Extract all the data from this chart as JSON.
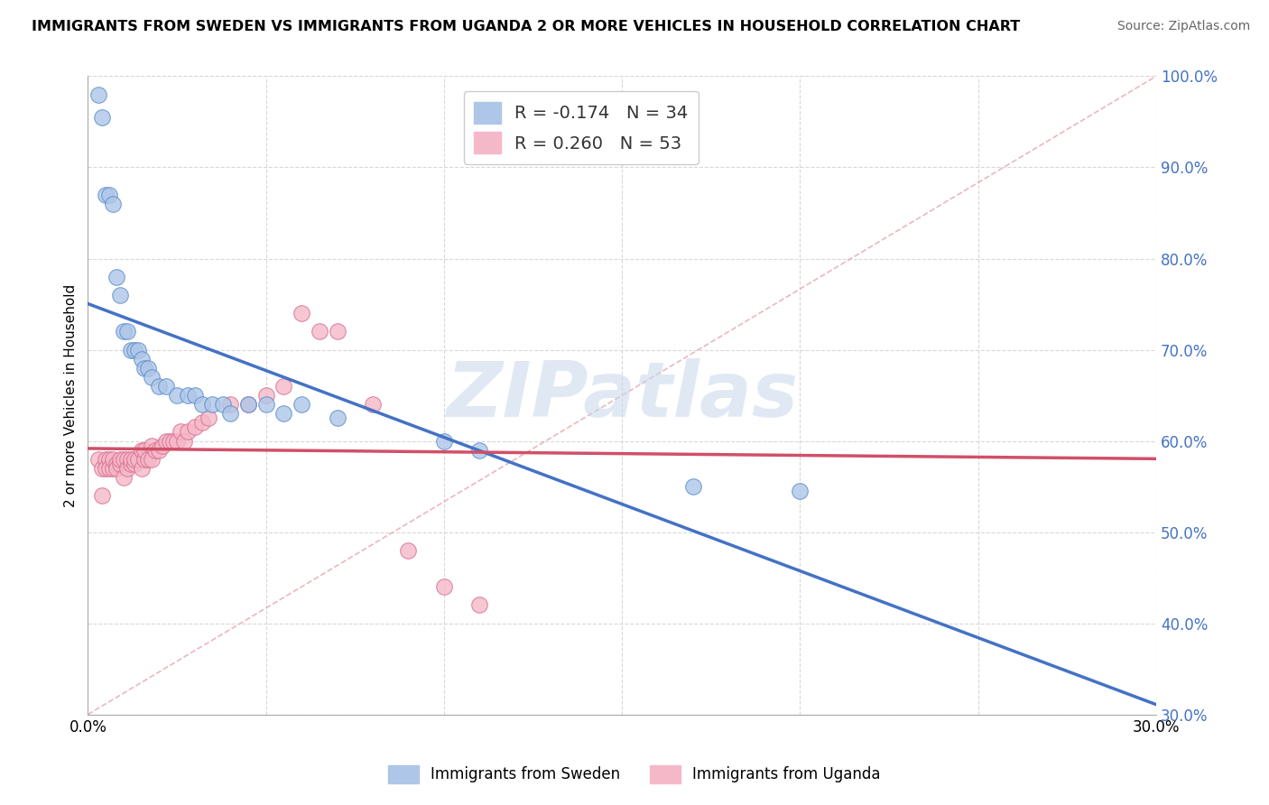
{
  "title": "IMMIGRANTS FROM SWEDEN VS IMMIGRANTS FROM UGANDA 2 OR MORE VEHICLES IN HOUSEHOLD CORRELATION CHART",
  "source": "Source: ZipAtlas.com",
  "ylabel": "2 or more Vehicles in Household",
  "xlim": [
    0.0,
    0.3
  ],
  "ylim": [
    0.3,
    1.0
  ],
  "xticks": [
    0.0,
    0.05,
    0.1,
    0.15,
    0.2,
    0.25,
    0.3
  ],
  "yticks": [
    0.3,
    0.4,
    0.5,
    0.6,
    0.7,
    0.8,
    0.9,
    1.0
  ],
  "xtick_labels": [
    "0.0%",
    "",
    "",
    "",
    "",
    "",
    "30.0%"
  ],
  "ytick_labels": [
    "30.0%",
    "40.0%",
    "50.0%",
    "60.0%",
    "70.0%",
    "80.0%",
    "90.0%",
    "100.0%"
  ],
  "sweden_R": -0.174,
  "sweden_N": 34,
  "uganda_R": 0.26,
  "uganda_N": 53,
  "sweden_dot_color": "#aec6e8",
  "sweden_edge_color": "#5b8dc9",
  "uganda_dot_color": "#f5b8c8",
  "uganda_edge_color": "#d87090",
  "sweden_line_color": "#4472c4",
  "uganda_line_color": "#d05068",
  "diag_line_color": "#e8b0b8",
  "watermark": "ZIPatlas",
  "watermark_color": "#c8d8ea",
  "legend_sweden": "Immigrants from Sweden",
  "legend_uganda": "Immigrants from Uganda",
  "sweden_x": [
    0.003,
    0.004,
    0.005,
    0.006,
    0.007,
    0.008,
    0.009,
    0.01,
    0.011,
    0.012,
    0.013,
    0.014,
    0.015,
    0.016,
    0.017,
    0.018,
    0.02,
    0.022,
    0.025,
    0.028,
    0.03,
    0.032,
    0.035,
    0.038,
    0.04,
    0.045,
    0.05,
    0.055,
    0.06,
    0.07,
    0.1,
    0.11,
    0.17,
    0.2
  ],
  "sweden_y": [
    0.98,
    0.955,
    0.87,
    0.87,
    0.86,
    0.78,
    0.76,
    0.72,
    0.72,
    0.7,
    0.7,
    0.7,
    0.69,
    0.68,
    0.68,
    0.67,
    0.66,
    0.66,
    0.65,
    0.65,
    0.65,
    0.64,
    0.64,
    0.64,
    0.63,
    0.64,
    0.64,
    0.63,
    0.64,
    0.625,
    0.6,
    0.59,
    0.55,
    0.545
  ],
  "uganda_x": [
    0.003,
    0.004,
    0.004,
    0.005,
    0.005,
    0.006,
    0.006,
    0.007,
    0.007,
    0.008,
    0.008,
    0.009,
    0.009,
    0.01,
    0.01,
    0.011,
    0.011,
    0.012,
    0.012,
    0.013,
    0.013,
    0.014,
    0.015,
    0.015,
    0.016,
    0.016,
    0.017,
    0.018,
    0.018,
    0.019,
    0.02,
    0.021,
    0.022,
    0.023,
    0.024,
    0.025,
    0.026,
    0.027,
    0.028,
    0.03,
    0.032,
    0.034,
    0.04,
    0.045,
    0.05,
    0.055,
    0.06,
    0.065,
    0.07,
    0.08,
    0.09,
    0.1,
    0.11
  ],
  "uganda_y": [
    0.58,
    0.57,
    0.54,
    0.58,
    0.57,
    0.58,
    0.57,
    0.57,
    0.58,
    0.575,
    0.57,
    0.575,
    0.58,
    0.56,
    0.58,
    0.58,
    0.57,
    0.575,
    0.58,
    0.575,
    0.58,
    0.58,
    0.57,
    0.59,
    0.58,
    0.59,
    0.58,
    0.595,
    0.58,
    0.59,
    0.59,
    0.595,
    0.6,
    0.6,
    0.6,
    0.6,
    0.61,
    0.6,
    0.61,
    0.615,
    0.62,
    0.625,
    0.64,
    0.64,
    0.65,
    0.66,
    0.74,
    0.72,
    0.72,
    0.64,
    0.48,
    0.44,
    0.42
  ]
}
